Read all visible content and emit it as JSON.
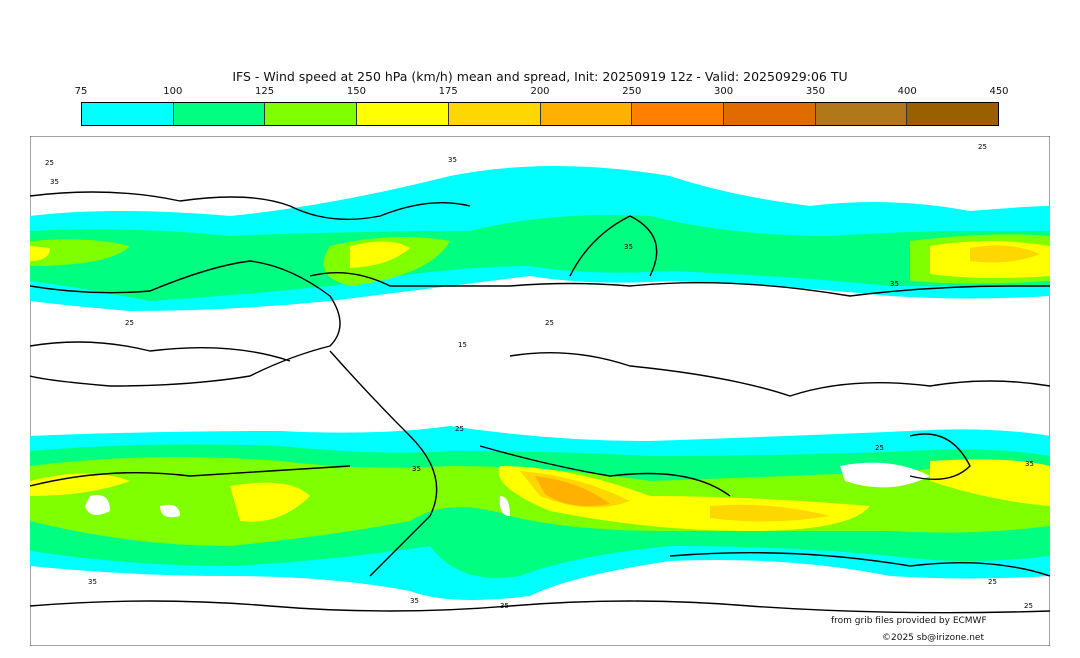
{
  "title": "IFS - Wind speed at 250 hPa (km/h) mean and spread, Init: 20250919 12z - Valid: 20250929:06 TU",
  "colorbar": {
    "ticks": [
      "75",
      "100",
      "125",
      "150",
      "175",
      "200",
      "250",
      "300",
      "350",
      "400",
      "450"
    ],
    "colors": [
      "#00ffff",
      "#00ff80",
      "#80ff00",
      "#ffff00",
      "#ffd700",
      "#ffb000",
      "#ff8000",
      "#e06c00",
      "#b07818",
      "#9a6000"
    ]
  },
  "contour_labels": [
    "25",
    "35",
    "15"
  ],
  "credits": {
    "source": "from grib files provided by ECMWF",
    "copyright": "©2025 sb@irizone.net"
  }
}
